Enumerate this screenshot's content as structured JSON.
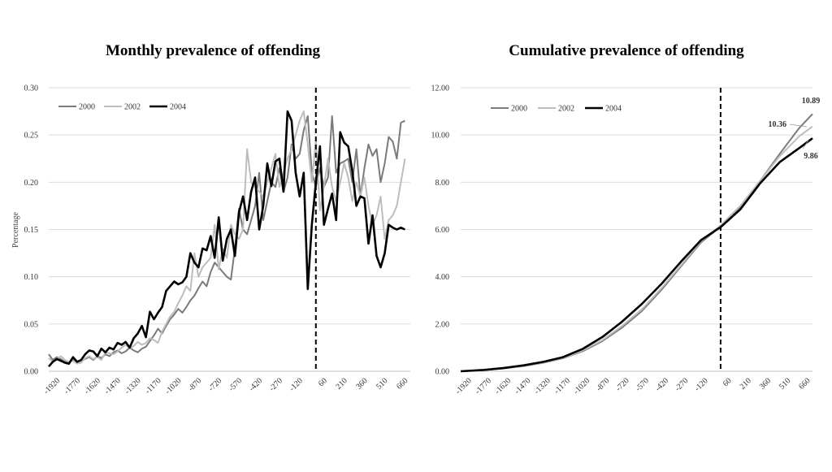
{
  "chart_data": [
    {
      "type": "line",
      "title": "Monthly prevalence of offending",
      "xlabel": "",
      "ylabel": "Percentage",
      "ylim": [
        0,
        0.3
      ],
      "y_ticks": [
        "0.00",
        "0.05",
        "0.10",
        "0.15",
        "0.20",
        "0.25",
        "0.30"
      ],
      "xlim": [
        -1980,
        700
      ],
      "x_ticks": [
        "-1920",
        "-1770",
        "-1620",
        "-1470",
        "-1320",
        "-1170",
        "-1020",
        "-870",
        "-720",
        "-570",
        "-420",
        "-270",
        "-120",
        "60",
        "210",
        "360",
        "510",
        "660"
      ],
      "cutoff_x": 0,
      "grid": true,
      "legend_position": "top-left",
      "series": [
        {
          "name": "2000",
          "color": "#7a7a7a",
          "width": 2,
          "x": [
            -1980,
            -1950,
            -1920,
            -1890,
            -1860,
            -1830,
            -1800,
            -1770,
            -1740,
            -1710,
            -1680,
            -1650,
            -1620,
            -1590,
            -1560,
            -1530,
            -1500,
            -1470,
            -1440,
            -1410,
            -1380,
            -1350,
            -1320,
            -1290,
            -1260,
            -1230,
            -1200,
            -1170,
            -1140,
            -1110,
            -1080,
            -1050,
            -1020,
            -990,
            -960,
            -930,
            -900,
            -870,
            -840,
            -810,
            -780,
            -750,
            -720,
            -690,
            -660,
            -630,
            -600,
            -570,
            -540,
            -510,
            -480,
            -450,
            -420,
            -390,
            -360,
            -330,
            -300,
            -270,
            -240,
            -210,
            -180,
            -150,
            -120,
            -90,
            -60,
            -30,
            0,
            30,
            60,
            90,
            120,
            150,
            180,
            210,
            240,
            270,
            300,
            330,
            360,
            390,
            420,
            450,
            480,
            510,
            540,
            570,
            600,
            630,
            660
          ],
          "values": [
            0.018,
            0.012,
            0.015,
            0.013,
            0.01,
            0.009,
            0.012,
            0.01,
            0.011,
            0.013,
            0.015,
            0.012,
            0.016,
            0.014,
            0.018,
            0.016,
            0.02,
            0.022,
            0.019,
            0.021,
            0.025,
            0.022,
            0.02,
            0.024,
            0.026,
            0.032,
            0.038,
            0.045,
            0.04,
            0.048,
            0.055,
            0.06,
            0.066,
            0.062,
            0.068,
            0.075,
            0.08,
            0.088,
            0.095,
            0.09,
            0.105,
            0.115,
            0.11,
            0.105,
            0.1,
            0.097,
            0.13,
            0.172,
            0.15,
            0.145,
            0.16,
            0.175,
            0.21,
            0.16,
            0.18,
            0.2,
            0.195,
            0.215,
            0.19,
            0.205,
            0.24,
            0.225,
            0.23,
            0.255,
            0.27,
            0.21,
            0.195,
            0.215,
            0.195,
            0.205,
            0.27,
            0.21,
            0.22,
            0.222,
            0.225,
            0.2,
            0.235,
            0.185,
            0.215,
            0.24,
            0.228,
            0.235,
            0.2,
            0.22,
            0.248,
            0.243,
            0.225,
            0.263,
            0.265
          ]
        },
        {
          "name": "2002",
          "color": "#bdbdbd",
          "width": 2,
          "x": [
            -1980,
            -1950,
            -1920,
            -1890,
            -1860,
            -1830,
            -1800,
            -1770,
            -1740,
            -1710,
            -1680,
            -1650,
            -1620,
            -1590,
            -1560,
            -1530,
            -1500,
            -1470,
            -1440,
            -1410,
            -1380,
            -1350,
            -1320,
            -1290,
            -1260,
            -1230,
            -1200,
            -1170,
            -1140,
            -1110,
            -1080,
            -1050,
            -1020,
            -990,
            -960,
            -930,
            -900,
            -870,
            -840,
            -810,
            -780,
            -750,
            -720,
            -690,
            -660,
            -630,
            -600,
            -570,
            -540,
            -510,
            -480,
            -450,
            -420,
            -390,
            -360,
            -330,
            -300,
            -270,
            -240,
            -210,
            -180,
            -150,
            -120,
            -90,
            -60,
            -30,
            0,
            30,
            60,
            90,
            120,
            150,
            180,
            210,
            240,
            270,
            300,
            330,
            360,
            390,
            420,
            450,
            480,
            510,
            540,
            570,
            600,
            630,
            660
          ],
          "values": [
            0.014,
            0.01,
            0.013,
            0.016,
            0.012,
            0.01,
            0.011,
            0.008,
            0.009,
            0.014,
            0.016,
            0.013,
            0.015,
            0.012,
            0.02,
            0.019,
            0.018,
            0.021,
            0.025,
            0.028,
            0.024,
            0.027,
            0.031,
            0.028,
            0.03,
            0.035,
            0.033,
            0.03,
            0.042,
            0.05,
            0.058,
            0.063,
            0.072,
            0.08,
            0.09,
            0.085,
            0.125,
            0.1,
            0.11,
            0.115,
            0.12,
            0.155,
            0.108,
            0.13,
            0.12,
            0.155,
            0.145,
            0.14,
            0.15,
            0.235,
            0.2,
            0.195,
            0.19,
            0.185,
            0.2,
            0.215,
            0.23,
            0.195,
            0.21,
            0.225,
            0.235,
            0.25,
            0.265,
            0.275,
            0.24,
            0.2,
            0.245,
            0.17,
            0.195,
            0.225,
            0.195,
            0.18,
            0.2,
            0.22,
            0.205,
            0.18,
            0.2,
            0.185,
            0.205,
            0.175,
            0.155,
            0.165,
            0.185,
            0.14,
            0.16,
            0.165,
            0.175,
            0.2,
            0.225
          ]
        },
        {
          "name": "2004",
          "color": "#000000",
          "width": 2.6,
          "x": [
            -1980,
            -1950,
            -1920,
            -1890,
            -1860,
            -1830,
            -1800,
            -1770,
            -1740,
            -1710,
            -1680,
            -1650,
            -1620,
            -1590,
            -1560,
            -1530,
            -1500,
            -1470,
            -1440,
            -1410,
            -1380,
            -1350,
            -1320,
            -1290,
            -1260,
            -1230,
            -1200,
            -1170,
            -1140,
            -1110,
            -1080,
            -1050,
            -1020,
            -990,
            -960,
            -930,
            -900,
            -870,
            -840,
            -810,
            -780,
            -750,
            -720,
            -690,
            -660,
            -630,
            -600,
            -570,
            -540,
            -510,
            -480,
            -450,
            -420,
            -390,
            -360,
            -330,
            -300,
            -270,
            -240,
            -210,
            -180,
            -150,
            -120,
            -90,
            -60,
            -30,
            0,
            30,
            60,
            90,
            120,
            150,
            180,
            210,
            240,
            270,
            300,
            330,
            360,
            390,
            420,
            450,
            480,
            510,
            540,
            570,
            600,
            630,
            660
          ],
          "values": [
            0.005,
            0.01,
            0.013,
            0.011,
            0.009,
            0.008,
            0.015,
            0.01,
            0.012,
            0.018,
            0.022,
            0.021,
            0.016,
            0.024,
            0.02,
            0.025,
            0.023,
            0.03,
            0.028,
            0.031,
            0.025,
            0.035,
            0.04,
            0.048,
            0.036,
            0.063,
            0.055,
            0.062,
            0.068,
            0.085,
            0.09,
            0.095,
            0.092,
            0.094,
            0.1,
            0.125,
            0.115,
            0.11,
            0.13,
            0.128,
            0.143,
            0.12,
            0.163,
            0.117,
            0.14,
            0.15,
            0.122,
            0.168,
            0.185,
            0.16,
            0.19,
            0.205,
            0.15,
            0.175,
            0.22,
            0.196,
            0.222,
            0.225,
            0.19,
            0.275,
            0.265,
            0.21,
            0.185,
            0.21,
            0.087,
            0.155,
            0.2,
            0.238,
            0.155,
            0.172,
            0.188,
            0.16,
            0.253,
            0.242,
            0.238,
            0.212,
            0.175,
            0.185,
            0.183,
            0.135,
            0.165,
            0.122,
            0.11,
            0.125,
            0.155,
            0.152,
            0.15,
            0.152,
            0.15
          ]
        }
      ]
    },
    {
      "type": "line",
      "title": "Cumulative prevalence of offending",
      "xlabel": "",
      "ylabel": "",
      "ylim": [
        0,
        12
      ],
      "y_ticks": [
        "0.00",
        "2.00",
        "4.00",
        "6.00",
        "8.00",
        "10.00",
        "12.00"
      ],
      "xlim": [
        -1980,
        700
      ],
      "x_ticks": [
        "-1920",
        "-1770",
        "-1620",
        "-1470",
        "-1320",
        "-1170",
        "-1020",
        "-870",
        "-720",
        "-570",
        "-420",
        "-270",
        "-120",
        "60",
        "210",
        "360",
        "510",
        "660"
      ],
      "cutoff_x": 0,
      "grid": true,
      "legend_position": "top-left",
      "end_labels": [
        "10.89",
        "10.36",
        "9.86"
      ],
      "series": [
        {
          "name": "2000",
          "color": "#7a7a7a",
          "width": 2,
          "x": [
            -1980,
            -1800,
            -1650,
            -1500,
            -1350,
            -1200,
            -1050,
            -900,
            -750,
            -600,
            -450,
            -300,
            -150,
            0,
            150,
            300,
            450,
            600,
            700
          ],
          "values": [
            0.0,
            0.05,
            0.12,
            0.22,
            0.36,
            0.55,
            0.85,
            1.28,
            1.85,
            2.55,
            3.45,
            4.45,
            5.45,
            6.12,
            6.95,
            8.05,
            9.2,
            10.3,
            10.89
          ]
        },
        {
          "name": "2002",
          "color": "#bdbdbd",
          "width": 2,
          "x": [
            -1980,
            -1800,
            -1650,
            -1500,
            -1350,
            -1200,
            -1050,
            -900,
            -750,
            -600,
            -450,
            -300,
            -150,
            0,
            150,
            300,
            450,
            600,
            700
          ],
          "values": [
            0.0,
            0.05,
            0.13,
            0.23,
            0.37,
            0.56,
            0.88,
            1.32,
            1.92,
            2.62,
            3.52,
            4.5,
            5.5,
            6.18,
            7.0,
            8.05,
            9.1,
            9.95,
            10.36
          ]
        },
        {
          "name": "2004",
          "color": "#000000",
          "width": 2.6,
          "x": [
            -1980,
            -1800,
            -1650,
            -1500,
            -1350,
            -1200,
            -1050,
            -900,
            -750,
            -600,
            -450,
            -300,
            -150,
            0,
            150,
            300,
            450,
            600,
            700
          ],
          "values": [
            0.0,
            0.06,
            0.14,
            0.25,
            0.4,
            0.6,
            0.95,
            1.45,
            2.1,
            2.85,
            3.7,
            4.65,
            5.55,
            6.1,
            6.85,
            7.95,
            8.85,
            9.45,
            9.86
          ]
        }
      ]
    }
  ]
}
